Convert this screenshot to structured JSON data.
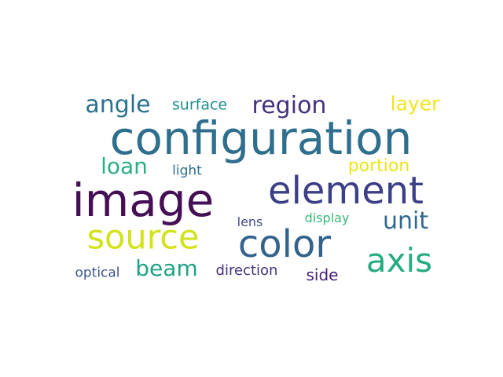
{
  "words": [
    {
      "text": "configuration",
      "color": "#2f6f8e"
    },
    {
      "text": "image",
      "color": "#440f54"
    },
    {
      "text": "element",
      "color": "#3c3f87"
    },
    {
      "text": "color",
      "color": "#33638d"
    },
    {
      "text": "source",
      "color": "#d2e21b"
    },
    {
      "text": "axis",
      "color": "#25ab82"
    },
    {
      "text": "angle",
      "color": "#2c728e"
    },
    {
      "text": "region",
      "color": "#46317e"
    },
    {
      "text": "unit",
      "color": "#31688e"
    },
    {
      "text": "loan",
      "color": "#2ab07f"
    },
    {
      "text": "beam",
      "color": "#20a386"
    },
    {
      "text": "layer",
      "color": "#f1e51d"
    },
    {
      "text": "portion",
      "color": "#eae51a"
    },
    {
      "text": "surface",
      "color": "#218f8d"
    },
    {
      "text": "light",
      "color": "#2e6f8e"
    },
    {
      "text": "lens",
      "color": "#3e4a89"
    },
    {
      "text": "display",
      "color": "#36b877"
    },
    {
      "text": "direction",
      "color": "#46327e"
    },
    {
      "text": "side",
      "color": "#482173"
    },
    {
      "text": "optical",
      "color": "#3a538b"
    }
  ]
}
